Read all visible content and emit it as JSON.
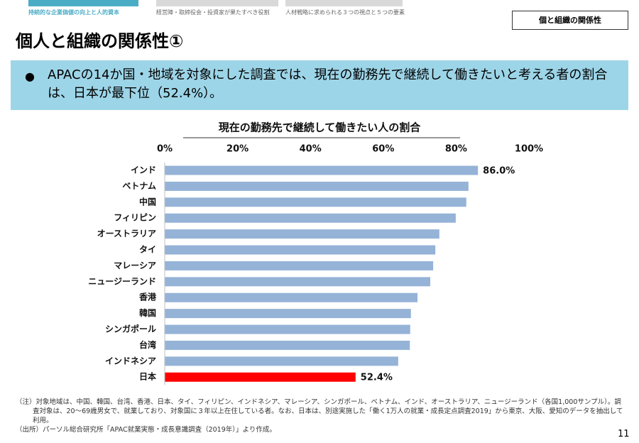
{
  "header": {
    "tabs": [
      "持続的な企業価値の向上と人的資本",
      "経営陣・取締役会・投資家が果たすべき役割",
      "人材戦略に求められる３つの視点と５つの要素"
    ],
    "section": "個と組織の関係性",
    "title": "個人と組織の関係性①"
  },
  "summary": "APACの14か国・地域を対象にした調査では、現在の勤務先で継続して働きたいと考える者の割合は、日本が最下位（52.4%）。",
  "chart_data": {
    "type": "hbar",
    "title": "現在の勤務先で継続して働きたい人の割合",
    "categories": [
      "インド",
      "ベトナム",
      "中国",
      "フィリピン",
      "オーストラリア",
      "タイ",
      "マレーシア",
      "ニュージーランド",
      "香港",
      "韓国",
      "シンガポール",
      "台湾",
      "インドネシア",
      "日本"
    ],
    "values": [
      86.0,
      83.4,
      82.8,
      79.9,
      75.4,
      74.3,
      73.7,
      72.9,
      69.4,
      67.6,
      67.4,
      67.3,
      64.1,
      52.4
    ],
    "value_labels": [
      "86.0%",
      null,
      null,
      null,
      null,
      null,
      null,
      null,
      null,
      null,
      null,
      null,
      null,
      "52.4%"
    ],
    "colors": [
      "#95b3d7",
      "#95b3d7",
      "#95b3d7",
      "#95b3d7",
      "#95b3d7",
      "#95b3d7",
      "#95b3d7",
      "#95b3d7",
      "#95b3d7",
      "#95b3d7",
      "#95b3d7",
      "#95b3d7",
      "#95b3d7",
      "#ff0000"
    ],
    "xlim": [
      0,
      100
    ],
    "xticks": [
      {
        "value": 0,
        "label": "0%"
      },
      {
        "value": 20,
        "label": "20%"
      },
      {
        "value": 40,
        "label": "40%"
      },
      {
        "value": 60,
        "label": "60%"
      },
      {
        "value": 80,
        "label": "80%"
      },
      {
        "value": 100,
        "label": "100%"
      }
    ]
  },
  "notes": [
    "（注）対象地域は、中国、韓国、台湾、香港、日本、タイ、フィリピン、インドネシア、マレーシア、シンガポール、ベトナム、インド、オーストラリア、ニュージーランド（各国1,000サンプル）。調査対象は、20～69歳男女で、就業しており、対象国に３年以上在住している者。なお、日本は、別途実施した「働く1万人の就業・成長定点調査2019」から東京、大阪、愛知のデータを抽出して利用。",
    "（出所）パーソル総合研究所「APAC就業実態・成長意識調査（2019年）」より作成。"
  ],
  "page_number": "11"
}
